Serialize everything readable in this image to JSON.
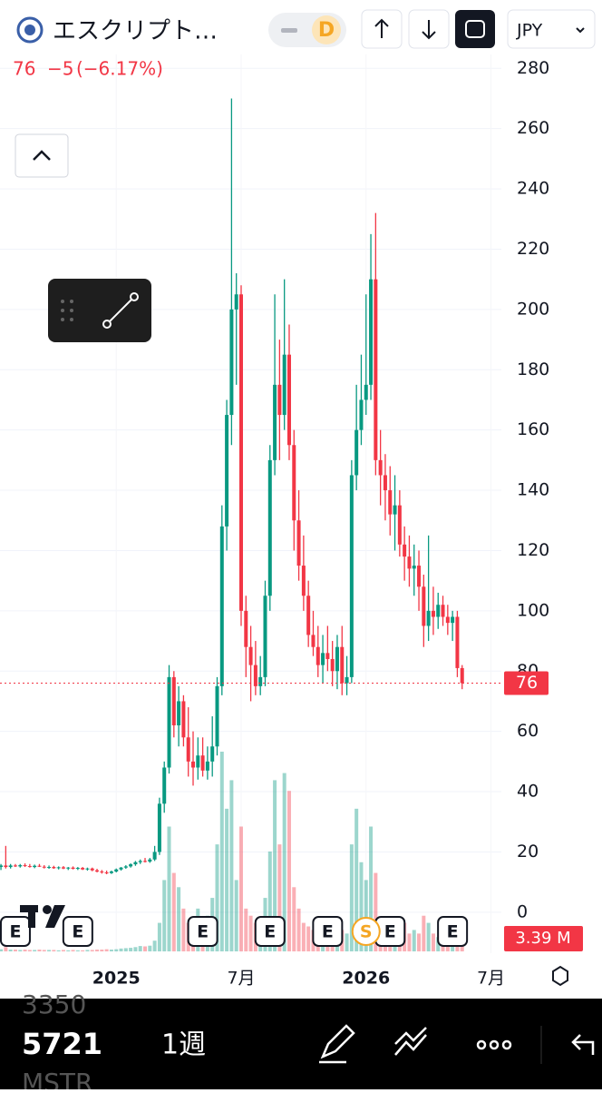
{
  "header": {
    "title": "エスクリプト…",
    "interval_badge": "D",
    "currency": "JPY"
  },
  "quote": {
    "price": "76",
    "change": "−5",
    "change_percent": "(−6.17%)"
  },
  "toolbar": {
    "prev": "3350",
    "symbol_code": "5721",
    "interval": "1週",
    "next": "MSTR"
  },
  "chart_data": {
    "type": "candlestick",
    "up_color": "#089981",
    "down_color": "#f23645",
    "grid": true,
    "xlim": [
      -24.2,
      79.6
    ],
    "ylim": [
      -13.6,
      284.6
    ],
    "xticks": [
      {
        "value": 0,
        "label": "2025"
      },
      {
        "value": 26,
        "label": "7月"
      },
      {
        "value": 52,
        "label": "2026"
      },
      {
        "value": 78,
        "label": "7月"
      }
    ],
    "yticks": [
      0,
      20,
      40,
      60,
      80,
      100,
      120,
      140,
      160,
      180,
      200,
      220,
      240,
      260,
      280
    ],
    "price_tag": 76,
    "volume_tag": {
      "value": 3.39,
      "label": "3.39 M"
    },
    "x": [
      -24,
      -23,
      -22,
      -21,
      -20,
      -19,
      -18,
      -17,
      -16,
      -15,
      -14,
      -13,
      -12,
      -11,
      -10,
      -9,
      -8,
      -7,
      -6,
      -5,
      -4,
      -3,
      -2,
      -1,
      0,
      1,
      2,
      3,
      4,
      5,
      6,
      7,
      8,
      9,
      10,
      11,
      12,
      13,
      14,
      15,
      16,
      17,
      18,
      19,
      20,
      21,
      22,
      23,
      24,
      25,
      26,
      27,
      28,
      29,
      30,
      31,
      32,
      33,
      34,
      35,
      36,
      37,
      38,
      39,
      40,
      41,
      42,
      43,
      44,
      45,
      46,
      47,
      48,
      49,
      50,
      51,
      52,
      53,
      54,
      55,
      56,
      57,
      58,
      59,
      60,
      61,
      62,
      63,
      64,
      65,
      66,
      67,
      68,
      69,
      70,
      71,
      72
    ],
    "open": [
      15,
      15.5,
      15,
      15.5,
      15.2,
      15.6,
      15.3,
      15,
      15.4,
      15.1,
      14.8,
      15,
      14.6,
      14.9,
      14.5,
      14.8,
      14.4,
      14.7,
      14.2,
      14.5,
      13.9,
      13.5,
      13.2,
      13,
      13.5,
      14.2,
      14.8,
      15.2,
      15.9,
      16.6,
      17,
      16.8,
      17.5,
      20,
      36,
      48,
      78,
      62,
      70,
      58,
      50,
      48,
      52,
      47,
      50,
      55,
      75,
      128,
      165,
      200,
      205,
      100,
      88,
      82,
      75,
      78,
      105,
      150,
      175,
      165,
      185,
      155,
      130,
      115,
      105,
      92,
      88,
      82,
      86,
      84,
      80,
      88,
      76,
      78,
      145,
      160,
      170,
      175,
      210,
      150,
      145,
      140,
      132,
      135,
      122,
      118,
      114,
      115,
      108,
      95,
      100,
      98,
      102,
      98,
      96,
      98,
      81
    ],
    "high": [
      16,
      22,
      16,
      16,
      16,
      16.2,
      16,
      15.8,
      16,
      15.6,
      15.5,
      15.4,
      15.2,
      15.3,
      15,
      15.2,
      15,
      15,
      14.8,
      14.8,
      14.4,
      14,
      13.8,
      13.8,
      14.5,
      15,
      15.6,
      16.2,
      17,
      17.5,
      18,
      18,
      22,
      38,
      50,
      82,
      80,
      75,
      72,
      68,
      60,
      58,
      58,
      55,
      65,
      78,
      135,
      170,
      270,
      212,
      208,
      105,
      95,
      90,
      85,
      110,
      155,
      205,
      190,
      210,
      195,
      160,
      140,
      125,
      110,
      100,
      95,
      92,
      95,
      90,
      92,
      95,
      85,
      150,
      175,
      185,
      205,
      225,
      232,
      160,
      152,
      148,
      145,
      140,
      128,
      125,
      122,
      120,
      112,
      125,
      108,
      106,
      105,
      102,
      100,
      100,
      82
    ],
    "low": [
      14,
      14.5,
      14.5,
      15,
      14.8,
      15,
      14.8,
      14.6,
      15,
      14.5,
      14.4,
      14.4,
      14.2,
      14.3,
      14,
      14.2,
      14,
      14,
      13.8,
      13.6,
      13.2,
      12.8,
      12.6,
      12.7,
      13.2,
      13.8,
      14.4,
      14.8,
      15.4,
      16,
      16.5,
      16.4,
      17,
      19,
      33,
      46,
      58,
      55,
      55,
      45,
      42,
      44,
      45,
      44,
      45,
      52,
      72,
      120,
      155,
      175,
      95,
      78,
      70,
      72,
      72,
      75,
      100,
      145,
      150,
      160,
      150,
      120,
      110,
      100,
      88,
      85,
      78,
      76,
      80,
      75,
      74,
      72,
      72,
      76,
      140,
      155,
      165,
      170,
      145,
      135,
      130,
      125,
      120,
      118,
      110,
      108,
      105,
      100,
      88,
      90,
      92,
      94,
      95,
      92,
      90,
      78,
      74
    ],
    "close": [
      15.5,
      15,
      15.5,
      15.2,
      15.6,
      15.3,
      15,
      15.4,
      15.1,
      14.8,
      15,
      14.6,
      14.9,
      14.5,
      14.8,
      14.4,
      14.7,
      14.2,
      14.5,
      13.9,
      13.5,
      13.2,
      13,
      13.5,
      14.2,
      14.8,
      15.2,
      15.9,
      16.6,
      17,
      16.8,
      17.5,
      20,
      36,
      48,
      78,
      62,
      70,
      58,
      50,
      48,
      52,
      47,
      50,
      55,
      75,
      128,
      165,
      200,
      205,
      100,
      88,
      82,
      75,
      78,
      105,
      150,
      175,
      165,
      185,
      155,
      130,
      115,
      105,
      92,
      88,
      82,
      86,
      84,
      80,
      88,
      76,
      78,
      145,
      160,
      170,
      175,
      210,
      150,
      145,
      140,
      132,
      135,
      122,
      118,
      114,
      115,
      108,
      95,
      100,
      98,
      102,
      98,
      96,
      98,
      81,
      76
    ],
    "volume": [
      0.6,
      1.2,
      0.5,
      0.5,
      0.4,
      0.5,
      0.4,
      0.4,
      0.5,
      0.4,
      0.4,
      0.4,
      0.3,
      0.4,
      0.3,
      0.4,
      0.3,
      0.3,
      0.4,
      0.4,
      0.5,
      0.5,
      0.6,
      0.5,
      0.6,
      0.8,
      0.9,
      1,
      1.2,
      1.5,
      1.4,
      1.6,
      3,
      8,
      20,
      35,
      22,
      18,
      12,
      8,
      6,
      12,
      8,
      10,
      15,
      30,
      56,
      40,
      48,
      20,
      35,
      12,
      10,
      8,
      6,
      15,
      28,
      48,
      30,
      50,
      45,
      18,
      12,
      8,
      7,
      6,
      5,
      6,
      5,
      5,
      8,
      6,
      5,
      30,
      40,
      25,
      20,
      35,
      22,
      8,
      7,
      6,
      6,
      5,
      8,
      5,
      6,
      5,
      10,
      8,
      5,
      4,
      3,
      3,
      3,
      5,
      3.39
    ],
    "events": {
      "x": [
        -21,
        -8,
        18,
        32,
        44,
        57,
        70,
        52
      ],
      "labels": [
        "E",
        "E",
        "E",
        "E",
        "E",
        "E",
        "E",
        "S"
      ]
    }
  }
}
